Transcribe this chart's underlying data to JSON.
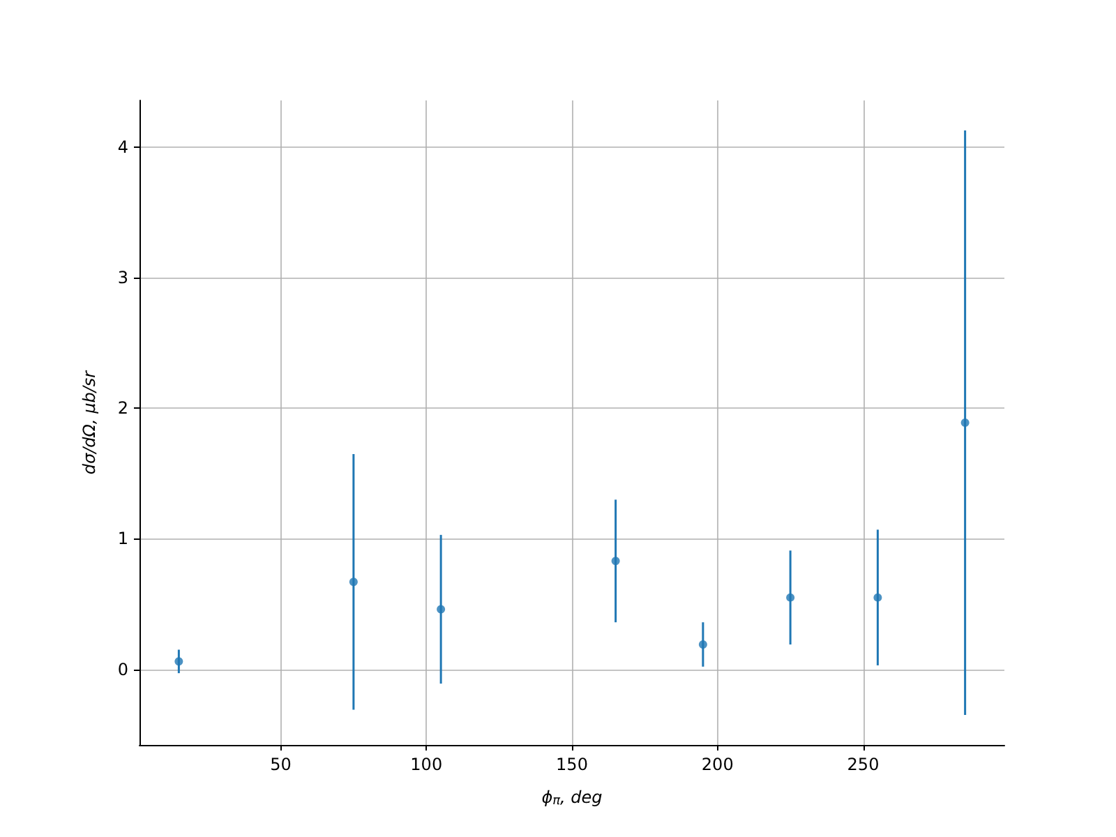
{
  "chart_data": {
    "type": "scatter",
    "xlabel": "ϕ$_{π}$, deg",
    "ylabel": "dσ/dΩ, μb/sr",
    "x": [
      15,
      75,
      105,
      165,
      195,
      225,
      255,
      285
    ],
    "values": [
      0.06,
      0.67,
      0.46,
      0.83,
      0.19,
      0.55,
      0.55,
      1.89
    ],
    "errors": [
      0.09,
      0.98,
      0.57,
      0.47,
      0.17,
      0.36,
      0.52,
      2.24
    ],
    "color": "#1f77b4",
    "marker": "circle",
    "xlim": [
      1.5,
      298.5
    ],
    "xticks": [
      50,
      100,
      150,
      200,
      250
    ],
    "ylim": [
      -0.58,
      4.36
    ],
    "yticks": [
      0,
      1,
      2,
      3,
      4
    ],
    "grid": true
  }
}
